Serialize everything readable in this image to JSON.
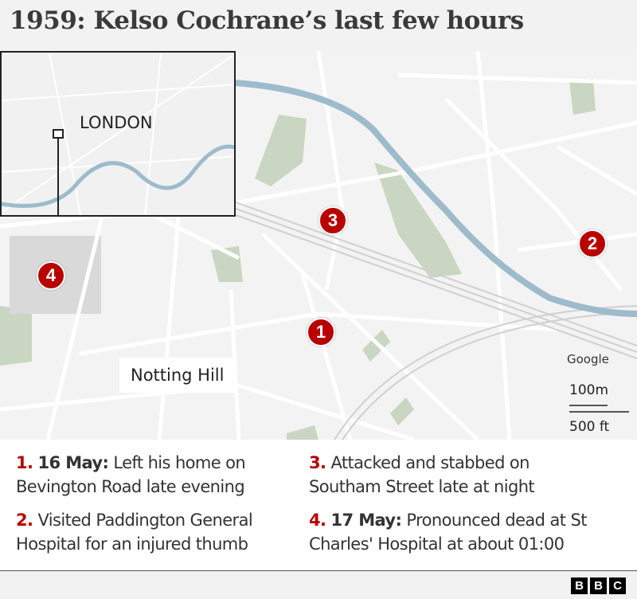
{
  "title": "1959: Kelso Cochrane’s last few hours",
  "map": {
    "inset_label": "LONDON",
    "place_label": "Notting Hill",
    "attribution": "Google",
    "scale_metric": "100m",
    "scale_imperial": "500 ft",
    "markers": [
      "1",
      "2",
      "3",
      "4"
    ],
    "colors": {
      "marker": "#b80000",
      "river": "#9dbbcb",
      "park": "#c9d6c2",
      "background": "#f3f3f3"
    }
  },
  "legend": [
    {
      "num": "1.",
      "date": "16 May:",
      "text": " Left his home on Bevington Road late evening"
    },
    {
      "num": "2.",
      "date": "",
      "text": " Visited Paddington General Hospital for an injured thumb"
    },
    {
      "num": "3.",
      "date": "",
      "text": " Attacked and stabbed on Southam Street late at night"
    },
    {
      "num": "4.",
      "date": "17 May:",
      "text": " Pronounced dead at St Charles' Hospital at about 01:00"
    }
  ],
  "footer": {
    "logo": [
      "B",
      "B",
      "C"
    ]
  }
}
